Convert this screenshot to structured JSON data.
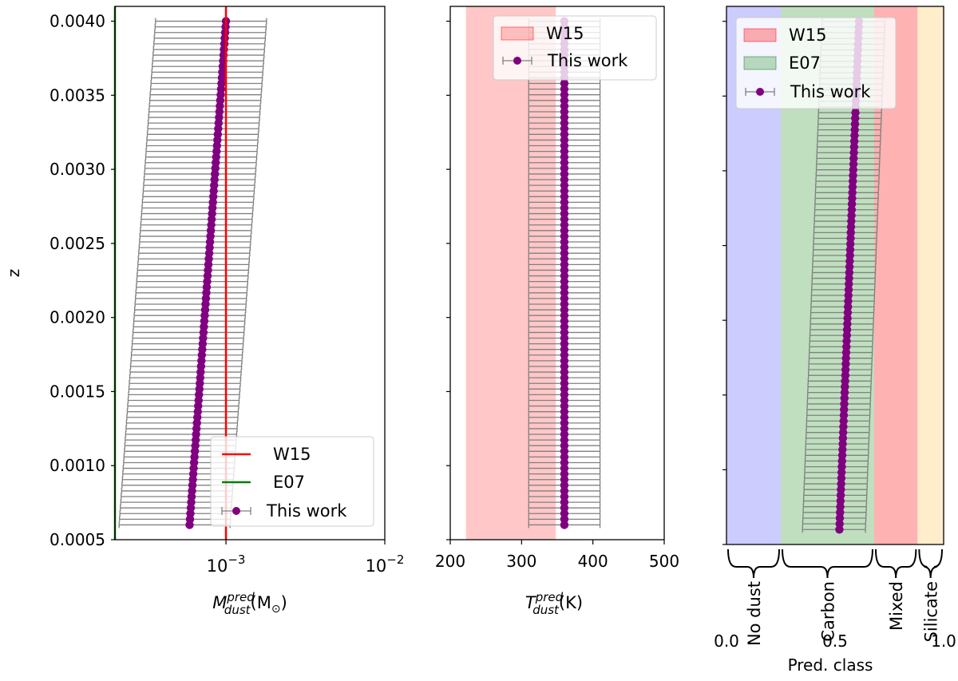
{
  "chart_data": [
    {
      "id": "mass",
      "type": "scatter",
      "xscale": "log",
      "xlim": [
        0.0002,
        0.01
      ],
      "ylim": [
        0.0005,
        0.0041
      ],
      "xlabel": "$M^{pred}_{dust}(M_\\odot)$",
      "xlabel_parts": {
        "base": "M",
        "sup": "pred",
        "sub": "dust",
        "tail": "(M",
        "tail_sub": "⊙",
        "close": ")"
      },
      "ylabel": "z",
      "x_ticks": [
        {
          "value": 0.001,
          "base": "10",
          "exp": "−3"
        },
        {
          "value": 0.01,
          "base": "10",
          "exp": "−2"
        }
      ],
      "y_ticks": [
        "0.0005",
        "0.0010",
        "0.0015",
        "0.0020",
        "0.0025",
        "0.0030",
        "0.0035",
        "0.0040"
      ],
      "reference_lines": [
        {
          "name": "W15",
          "value": 0.001,
          "color": "#ff0000"
        },
        {
          "name": "E07",
          "value": 0.0002,
          "color": "#008000"
        }
      ],
      "points": {
        "z_start": 0.0006,
        "z_end": 0.004,
        "x_start": 0.00059,
        "x_end": 0.001,
        "err_factor_low": 0.36,
        "err_factor_high": 1.8,
        "color": "#800080"
      },
      "legend": {
        "position": "lower-right",
        "entries": [
          "W15",
          "E07",
          "This work"
        ]
      }
    },
    {
      "id": "temperature",
      "type": "scatter",
      "xlim": [
        200,
        500
      ],
      "ylim": [
        0.0005,
        0.0041
      ],
      "xlabel": "$T^{pred}_{dust}(K)$",
      "xlabel_parts": {
        "base": "T",
        "sup": "pred",
        "sub": "dust",
        "tail": "(K)"
      },
      "x_ticks": [
        "200",
        "300",
        "400",
        "500"
      ],
      "bands": [
        {
          "name": "W15",
          "range": [
            222,
            348
          ],
          "color": "#ff0000",
          "opacity": 0.22
        }
      ],
      "points": {
        "z_start": 0.0006,
        "z_end": 0.004,
        "value": 360,
        "err_low": 50,
        "err_high": 50,
        "color": "#800080"
      },
      "legend": {
        "position": "upper-right",
        "entries": [
          "W15",
          "This work"
        ]
      }
    },
    {
      "id": "class",
      "type": "scatter",
      "xlim": [
        0,
        1
      ],
      "ylim": [
        0.0005,
        0.0041
      ],
      "xlabel": "Pred. class",
      "x_ticks": [
        "0.0",
        "0.5",
        "1.0"
      ],
      "bands": [
        {
          "name": "No dust",
          "range": [
            0,
            0.25
          ],
          "color": "#0000ff",
          "opacity": 0.2
        },
        {
          "name": "E07",
          "range": [
            0.25,
            0.68
          ],
          "color": "#008000",
          "opacity": 0.25
        },
        {
          "name": "W15",
          "range": [
            0.68,
            0.88
          ],
          "color": "#ff0000",
          "opacity": 0.3
        },
        {
          "name": "Silicate",
          "range": [
            0.88,
            1.0
          ],
          "color": "#ffa500",
          "opacity": 0.2
        }
      ],
      "class_labels": [
        {
          "label": "No dust",
          "range": [
            0,
            0.25
          ]
        },
        {
          "label": "Carbon",
          "range": [
            0.25,
            0.68
          ]
        },
        {
          "label": "Mixed",
          "range": [
            0.68,
            0.88
          ]
        },
        {
          "label": "Silicate",
          "range": [
            0.88,
            1.0
          ]
        }
      ],
      "points": {
        "z_start": 0.0006,
        "z_end": 0.004,
        "x_start": 0.52,
        "x_end": 0.61,
        "err_low": 0.17,
        "err_high": 0.12,
        "color": "#800080"
      },
      "legend": {
        "position": "upper-left",
        "entries": [
          "W15",
          "E07",
          "This work"
        ]
      }
    }
  ]
}
